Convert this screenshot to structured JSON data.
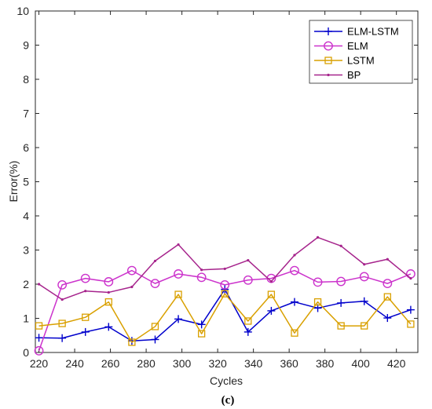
{
  "chart_data": {
    "type": "line",
    "xlabel": "Cycles",
    "ylabel": "Error(%)",
    "panel_label": "(c)",
    "xlim": [
      218,
      432
    ],
    "ylim": [
      0,
      10
    ],
    "xticks": [
      220,
      240,
      260,
      280,
      300,
      320,
      340,
      360,
      380,
      400,
      420
    ],
    "yticks": [
      0,
      1,
      2,
      3,
      4,
      5,
      6,
      7,
      8,
      9,
      10
    ],
    "x": [
      220,
      233,
      246,
      259,
      272,
      285,
      298,
      311,
      324,
      337,
      350,
      363,
      376,
      389,
      402,
      415,
      428
    ],
    "legend_position": "top-right",
    "series": [
      {
        "name": "ELM-LSTM",
        "color": "#0000CC",
        "marker": "plus",
        "values": [
          0.43,
          0.42,
          0.6,
          0.75,
          0.34,
          0.38,
          0.98,
          0.82,
          1.85,
          0.6,
          1.22,
          1.48,
          1.3,
          1.45,
          1.5,
          1.01,
          1.25
        ]
      },
      {
        "name": "ELM",
        "color": "#CC33CC",
        "marker": "circle",
        "values": [
          0.05,
          1.98,
          2.17,
          2.07,
          2.4,
          2.02,
          2.3,
          2.2,
          1.98,
          2.12,
          2.17,
          2.4,
          2.06,
          2.08,
          2.22,
          2.02,
          2.3
        ]
      },
      {
        "name": "LSTM",
        "color": "#D9A000",
        "marker": "square",
        "values": [
          0.78,
          0.85,
          1.03,
          1.48,
          0.3,
          0.76,
          1.7,
          0.55,
          1.72,
          0.92,
          1.7,
          0.57,
          1.48,
          0.78,
          0.78,
          1.63,
          0.83
        ]
      },
      {
        "name": "BP",
        "color": "#A6248C",
        "marker": "dot",
        "values": [
          2.0,
          1.55,
          1.8,
          1.76,
          1.92,
          2.68,
          3.16,
          2.42,
          2.45,
          2.7,
          2.08,
          2.85,
          3.37,
          3.12,
          2.58,
          2.73,
          2.17
        ]
      }
    ]
  }
}
